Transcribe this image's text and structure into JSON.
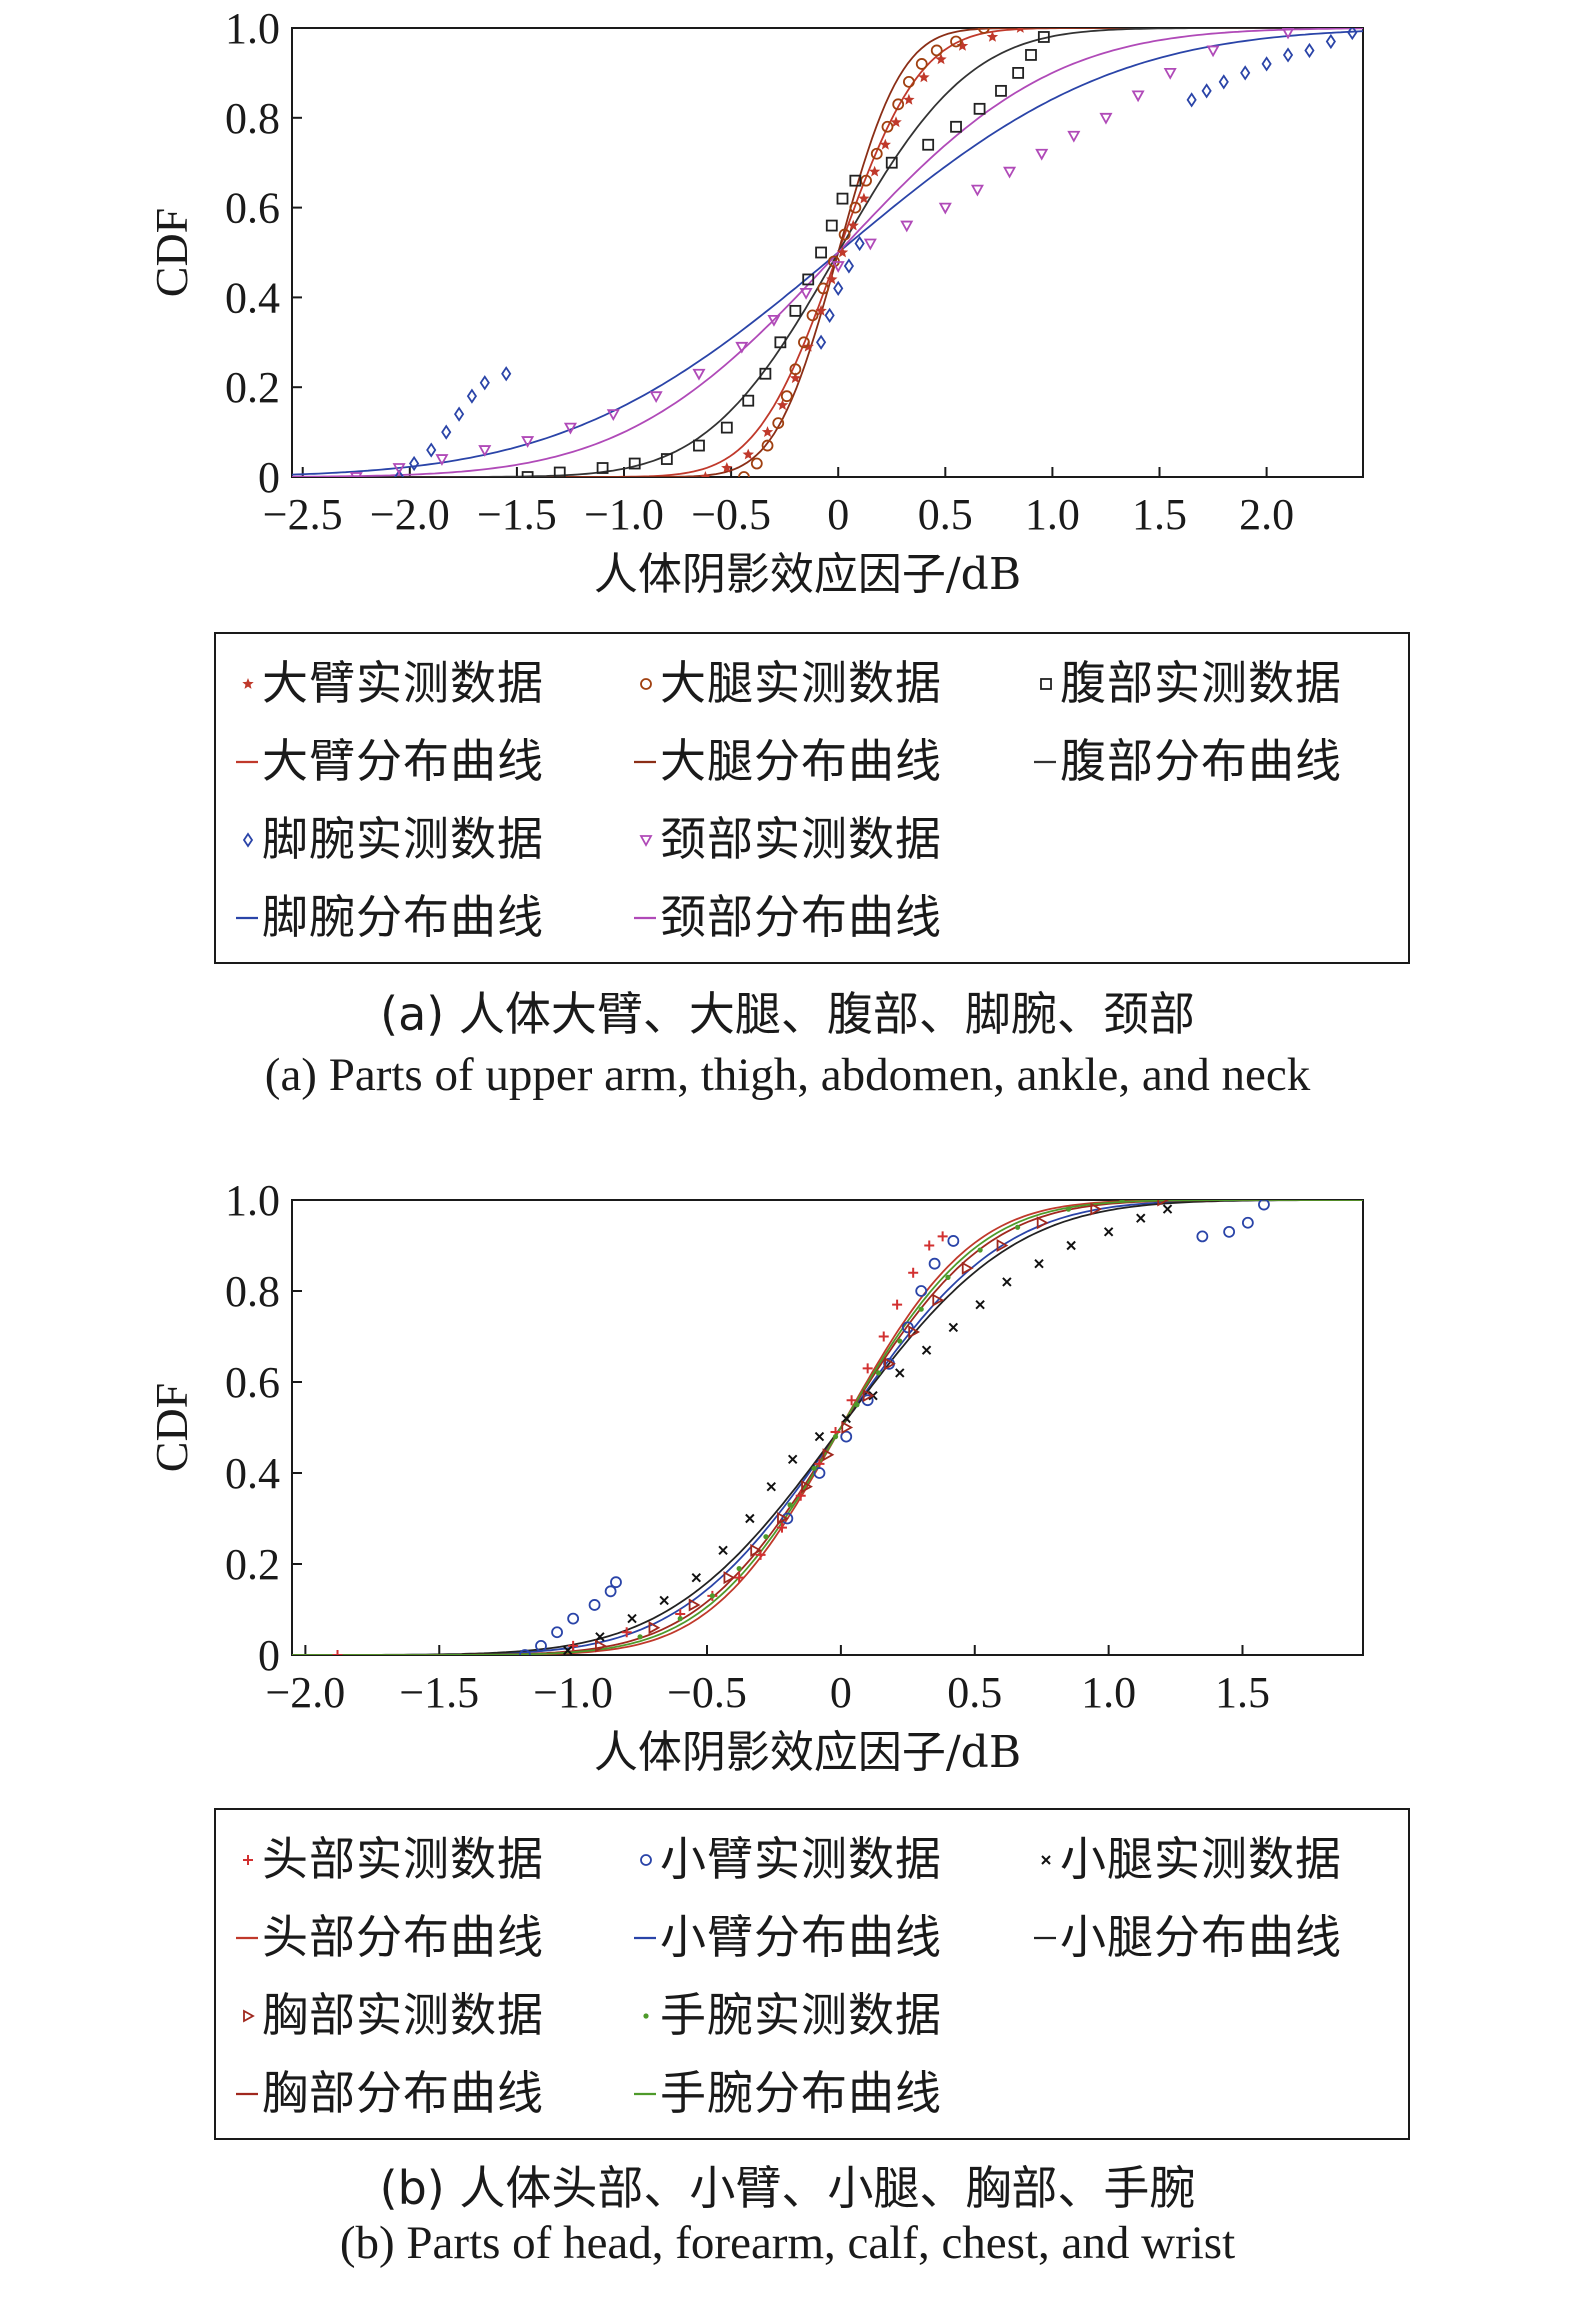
{
  "chart_data": [
    {
      "type": "scatter",
      "caption_zh": "(a) 人体大臂、大腿、腹部、脚腕、颈部",
      "caption_en": "(a) Parts of upper arm, thigh, abdomen, ankle, and neck",
      "xlabel": "人体阴影效应因子/dB",
      "ylabel": "CDF",
      "xlim": [
        -2.55,
        2.45
      ],
      "ylim": [
        0,
        1
      ],
      "xticks": [
        "−2.5",
        "−2.0",
        "−1.5",
        "−1.0",
        "−0.5",
        "0",
        "0.5",
        "1.0",
        "1.5",
        "2.0"
      ],
      "xtick_values": [
        -2.5,
        -2.0,
        -1.5,
        -1.0,
        -0.5,
        0,
        0.5,
        1.0,
        1.5,
        2.0
      ],
      "yticks": [
        "0",
        "0.2",
        "0.4",
        "0.6",
        "0.8",
        "1.0"
      ],
      "ytick_values": [
        0,
        0.2,
        0.4,
        0.6,
        0.8,
        1.0
      ],
      "grid": false,
      "legend_placement": "bottom",
      "legend_rows": [
        [
          "大臂实测数据",
          "大腿实测数据",
          "腹部实测数据"
        ],
        [
          "大臂分布曲线",
          "大腿分布曲线",
          "腹部分布曲线"
        ],
        [
          "脚腕实测数据",
          "颈部实测数据"
        ],
        [
          "脚腕分布曲线",
          "颈部分布曲线"
        ]
      ],
      "series": [
        {
          "name": "大臂实测数据",
          "kind": "points",
          "marker": "star",
          "color": "#c0392b",
          "points": [
            [
              -0.62,
              0.0
            ],
            [
              -0.52,
              0.02
            ],
            [
              -0.42,
              0.05
            ],
            [
              -0.33,
              0.1
            ],
            [
              -0.26,
              0.16
            ],
            [
              -0.2,
              0.22
            ],
            [
              -0.14,
              0.29
            ],
            [
              -0.08,
              0.37
            ],
            [
              -0.03,
              0.44
            ],
            [
              0.02,
              0.5
            ],
            [
              0.07,
              0.56
            ],
            [
              0.12,
              0.62
            ],
            [
              0.17,
              0.68
            ],
            [
              0.22,
              0.74
            ],
            [
              0.27,
              0.79
            ],
            [
              0.33,
              0.84
            ],
            [
              0.4,
              0.89
            ],
            [
              0.48,
              0.93
            ],
            [
              0.58,
              0.96
            ],
            [
              0.72,
              0.98
            ],
            [
              0.85,
              1.0
            ]
          ]
        },
        {
          "name": "大臂分布曲线",
          "kind": "curve",
          "color": "#c0392b",
          "mu": 0.0,
          "sigma": 0.3
        },
        {
          "name": "大腿实测数据",
          "kind": "points",
          "marker": "circle",
          "color": "#a04010",
          "points": [
            [
              -0.44,
              0.0
            ],
            [
              -0.38,
              0.03
            ],
            [
              -0.33,
              0.07
            ],
            [
              -0.28,
              0.12
            ],
            [
              -0.24,
              0.18
            ],
            [
              -0.2,
              0.24
            ],
            [
              -0.16,
              0.3
            ],
            [
              -0.12,
              0.36
            ],
            [
              -0.07,
              0.42
            ],
            [
              -0.02,
              0.48
            ],
            [
              0.03,
              0.54
            ],
            [
              0.08,
              0.6
            ],
            [
              0.13,
              0.66
            ],
            [
              0.18,
              0.72
            ],
            [
              0.23,
              0.78
            ],
            [
              0.28,
              0.83
            ],
            [
              0.33,
              0.88
            ],
            [
              0.39,
              0.92
            ],
            [
              0.46,
              0.95
            ],
            [
              0.55,
              0.97
            ],
            [
              0.68,
              1.0
            ]
          ]
        },
        {
          "name": "大腿分布曲线",
          "kind": "curve",
          "color": "#8b2e16",
          "mu": 0.0,
          "sigma": 0.23
        },
        {
          "name": "腹部实测数据",
          "kind": "points",
          "marker": "square",
          "color": "#222222",
          "points": [
            [
              -1.45,
              0.0
            ],
            [
              -1.3,
              0.01
            ],
            [
              -1.1,
              0.02
            ],
            [
              -0.95,
              0.03
            ],
            [
              -0.8,
              0.04
            ],
            [
              -0.65,
              0.07
            ],
            [
              -0.52,
              0.11
            ],
            [
              -0.42,
              0.17
            ],
            [
              -0.34,
              0.23
            ],
            [
              -0.27,
              0.3
            ],
            [
              -0.2,
              0.37
            ],
            [
              -0.14,
              0.44
            ],
            [
              -0.08,
              0.5
            ],
            [
              -0.03,
              0.56
            ],
            [
              0.02,
              0.62
            ],
            [
              0.08,
              0.66
            ],
            [
              0.25,
              0.7
            ],
            [
              0.42,
              0.74
            ],
            [
              0.55,
              0.78
            ],
            [
              0.66,
              0.82
            ],
            [
              0.76,
              0.86
            ],
            [
              0.84,
              0.9
            ],
            [
              0.9,
              0.94
            ],
            [
              0.96,
              0.98
            ]
          ]
        },
        {
          "name": "腹部分布曲线",
          "kind": "curve",
          "color": "#333333",
          "mu": 0.0,
          "sigma": 0.48
        },
        {
          "name": "脚腕实测数据",
          "kind": "points",
          "marker": "diamond",
          "color": "#2a44a8",
          "points": [
            [
              -2.05,
              0.0
            ],
            [
              -1.98,
              0.03
            ],
            [
              -1.9,
              0.06
            ],
            [
              -1.83,
              0.1
            ],
            [
              -1.77,
              0.14
            ],
            [
              -1.71,
              0.18
            ],
            [
              -1.65,
              0.21
            ],
            [
              -1.55,
              0.23
            ],
            [
              -0.08,
              0.3
            ],
            [
              -0.04,
              0.36
            ],
            [
              0.0,
              0.42
            ],
            [
              0.05,
              0.47
            ],
            [
              0.1,
              0.52
            ],
            [
              1.65,
              0.84
            ],
            [
              1.72,
              0.86
            ],
            [
              1.8,
              0.88
            ],
            [
              1.9,
              0.9
            ],
            [
              2.0,
              0.92
            ],
            [
              2.1,
              0.94
            ],
            [
              2.2,
              0.95
            ],
            [
              2.3,
              0.97
            ],
            [
              2.4,
              0.99
            ]
          ]
        },
        {
          "name": "脚腕分布曲线",
          "kind": "curve",
          "color": "#2a44a8",
          "mu": 0.0,
          "sigma": 1.0
        },
        {
          "name": "颈部实测数据",
          "kind": "points",
          "marker": "triangle-down",
          "color": "#b04ab8",
          "points": [
            [
              -2.25,
              0.0
            ],
            [
              -2.05,
              0.02
            ],
            [
              -1.85,
              0.04
            ],
            [
              -1.65,
              0.06
            ],
            [
              -1.45,
              0.08
            ],
            [
              -1.25,
              0.11
            ],
            [
              -1.05,
              0.14
            ],
            [
              -0.85,
              0.18
            ],
            [
              -0.65,
              0.23
            ],
            [
              -0.45,
              0.29
            ],
            [
              -0.3,
              0.35
            ],
            [
              -0.15,
              0.41
            ],
            [
              0.0,
              0.47
            ],
            [
              0.15,
              0.52
            ],
            [
              0.32,
              0.56
            ],
            [
              0.5,
              0.6
            ],
            [
              0.65,
              0.64
            ],
            [
              0.8,
              0.68
            ],
            [
              0.95,
              0.72
            ],
            [
              1.1,
              0.76
            ],
            [
              1.25,
              0.8
            ],
            [
              1.4,
              0.85
            ],
            [
              1.55,
              0.9
            ],
            [
              1.75,
              0.95
            ],
            [
              2.1,
              0.99
            ]
          ]
        },
        {
          "name": "颈部分布曲线",
          "kind": "curve",
          "color": "#b04ab8",
          "mu": 0.0,
          "sigma": 0.78
        }
      ]
    },
    {
      "type": "scatter",
      "caption_zh": "(b) 人体头部、小臂、小腿、胸部、手腕",
      "caption_en": "(b) Parts of head, forearm, calf, chest, and wrist",
      "xlabel": "人体阴影效应因子/dB",
      "ylabel": "CDF",
      "xlim": [
        -2.05,
        1.95
      ],
      "ylim": [
        0,
        1
      ],
      "xticks": [
        "−2.0",
        "−1.5",
        "−1.0",
        "−0.5",
        "0",
        "0.5",
        "1.0",
        "1.5"
      ],
      "xtick_values": [
        -2.0,
        -1.5,
        -1.0,
        -0.5,
        0,
        0.5,
        1.0,
        1.5
      ],
      "yticks": [
        "0",
        "0.2",
        "0.4",
        "0.6",
        "0.8",
        "1.0"
      ],
      "ytick_values": [
        0,
        0.2,
        0.4,
        0.6,
        0.8,
        1.0
      ],
      "grid": false,
      "legend_placement": "bottom",
      "legend_rows": [
        [
          "头部实测数据",
          "小臂实测数据",
          "小腿实测数据"
        ],
        [
          "头部分布曲线",
          "小臂分布曲线",
          "小腿分布曲线"
        ],
        [
          "胸部实测数据",
          "手腕实测数据"
        ],
        [
          "胸部分布曲线",
          "手腕分布曲线"
        ]
      ],
      "series": [
        {
          "name": "头部实测数据",
          "kind": "points",
          "marker": "plus",
          "color": "#d23030",
          "points": [
            [
              -1.88,
              0.0
            ],
            [
              -1.0,
              0.02
            ],
            [
              -0.8,
              0.05
            ],
            [
              -0.6,
              0.09
            ],
            [
              -0.48,
              0.13
            ],
            [
              -0.38,
              0.17
            ],
            [
              -0.3,
              0.22
            ],
            [
              -0.22,
              0.28
            ],
            [
              -0.15,
              0.35
            ],
            [
              -0.08,
              0.42
            ],
            [
              -0.02,
              0.49
            ],
            [
              0.04,
              0.56
            ],
            [
              0.1,
              0.63
            ],
            [
              0.16,
              0.7
            ],
            [
              0.21,
              0.77
            ],
            [
              0.27,
              0.84
            ],
            [
              0.33,
              0.9
            ],
            [
              0.38,
              0.92
            ]
          ]
        },
        {
          "name": "头部分布曲线",
          "kind": "curve",
          "color": "#c0392b",
          "mu": 0.0,
          "sigma": 0.38
        },
        {
          "name": "小臂实测数据",
          "kind": "points",
          "marker": "circle",
          "color": "#2a44a8",
          "points": [
            [
              -1.18,
              0.0
            ],
            [
              -1.12,
              0.02
            ],
            [
              -1.06,
              0.05
            ],
            [
              -1.0,
              0.08
            ],
            [
              -0.92,
              0.11
            ],
            [
              -0.86,
              0.14
            ],
            [
              -0.84,
              0.16
            ],
            [
              -0.2,
              0.3
            ],
            [
              -0.08,
              0.4
            ],
            [
              0.02,
              0.48
            ],
            [
              0.1,
              0.56
            ],
            [
              0.18,
              0.64
            ],
            [
              0.25,
              0.72
            ],
            [
              0.3,
              0.8
            ],
            [
              0.35,
              0.86
            ],
            [
              0.42,
              0.91
            ],
            [
              1.35,
              0.92
            ],
            [
              1.45,
              0.93
            ],
            [
              1.52,
              0.95
            ],
            [
              1.58,
              0.99
            ]
          ]
        },
        {
          "name": "小臂分布曲线",
          "kind": "curve",
          "color": "#2a44a8",
          "mu": 0.0,
          "sigma": 0.47
        },
        {
          "name": "小腿实测数据",
          "kind": "points",
          "marker": "x",
          "color": "#111111",
          "points": [
            [
              -1.02,
              0.01
            ],
            [
              -0.9,
              0.04
            ],
            [
              -0.78,
              0.08
            ],
            [
              -0.66,
              0.12
            ],
            [
              -0.54,
              0.17
            ],
            [
              -0.44,
              0.23
            ],
            [
              -0.34,
              0.3
            ],
            [
              -0.26,
              0.37
            ],
            [
              -0.18,
              0.43
            ],
            [
              -0.08,
              0.48
            ],
            [
              0.02,
              0.52
            ],
            [
              0.12,
              0.57
            ],
            [
              0.22,
              0.62
            ],
            [
              0.32,
              0.67
            ],
            [
              0.42,
              0.72
            ],
            [
              0.52,
              0.77
            ],
            [
              0.62,
              0.82
            ],
            [
              0.74,
              0.86
            ],
            [
              0.86,
              0.9
            ],
            [
              1.0,
              0.93
            ],
            [
              1.12,
              0.96
            ],
            [
              1.22,
              0.98
            ]
          ]
        },
        {
          "name": "小腿分布曲线",
          "kind": "curve",
          "color": "#222222",
          "mu": 0.0,
          "sigma": 0.5
        },
        {
          "name": "胸部实测数据",
          "kind": "points",
          "marker": "triangle-right",
          "color": "#a0281e",
          "points": [
            [
              -0.9,
              0.02
            ],
            [
              -0.7,
              0.06
            ],
            [
              -0.55,
              0.11
            ],
            [
              -0.42,
              0.17
            ],
            [
              -0.32,
              0.23
            ],
            [
              -0.22,
              0.3
            ],
            [
              -0.13,
              0.37
            ],
            [
              -0.05,
              0.44
            ],
            [
              0.02,
              0.5
            ],
            [
              0.1,
              0.57
            ],
            [
              0.18,
              0.64
            ],
            [
              0.27,
              0.71
            ],
            [
              0.36,
              0.78
            ],
            [
              0.47,
              0.85
            ],
            [
              0.6,
              0.9
            ],
            [
              0.75,
              0.95
            ],
            [
              0.95,
              0.98
            ],
            [
              1.2,
              1.0
            ]
          ]
        },
        {
          "name": "胸部分布曲线",
          "kind": "curve",
          "color": "#a0281e",
          "mu": 0.0,
          "sigma": 0.42
        },
        {
          "name": "手腕实测数据",
          "kind": "points",
          "marker": "dot",
          "color": "#4e9a2a",
          "points": [
            [
              -0.75,
              0.04
            ],
            [
              -0.6,
              0.08
            ],
            [
              -0.48,
              0.13
            ],
            [
              -0.38,
              0.19
            ],
            [
              -0.28,
              0.26
            ],
            [
              -0.19,
              0.33
            ],
            [
              -0.1,
              0.41
            ],
            [
              -0.02,
              0.48
            ],
            [
              0.06,
              0.55
            ],
            [
              0.14,
              0.62
            ],
            [
              0.22,
              0.69
            ],
            [
              0.3,
              0.76
            ],
            [
              0.4,
              0.83
            ],
            [
              0.52,
              0.89
            ],
            [
              0.66,
              0.94
            ],
            [
              0.85,
              0.98
            ],
            [
              1.05,
              1.0
            ]
          ]
        },
        {
          "name": "手腕分布曲线",
          "kind": "curve",
          "color": "#4e9a2a",
          "mu": 0.0,
          "sigma": 0.4
        }
      ]
    }
  ]
}
